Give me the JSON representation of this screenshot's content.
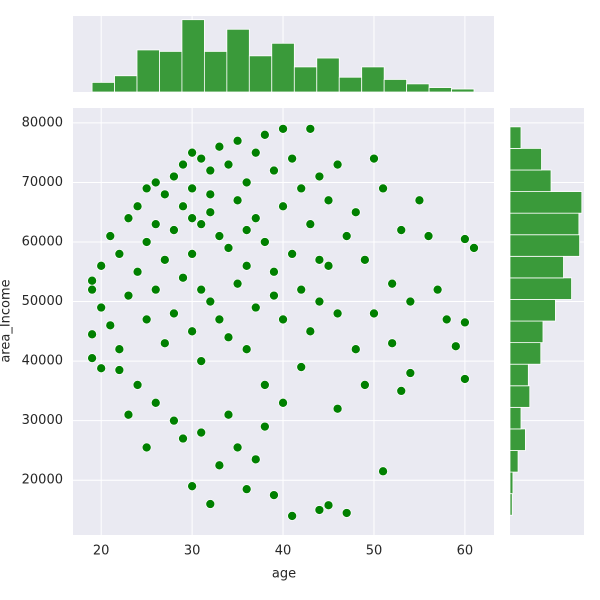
{
  "chart_data": {
    "type": "scatter",
    "x_label": "age",
    "y_label": "area_Income",
    "color": "green",
    "grid": true,
    "xlim": [
      16.9,
      63.2
    ],
    "ylim": [
      10800,
      82500
    ],
    "xticks": [
      20,
      30,
      40,
      50,
      60
    ],
    "yticks": [
      20000,
      30000,
      40000,
      50000,
      60000,
      70000,
      80000
    ],
    "x": [
      19,
      19,
      19,
      19,
      20,
      20,
      20,
      21,
      21,
      22,
      22,
      22,
      23,
      23,
      23,
      24,
      24,
      24,
      25,
      25,
      25,
      25,
      26,
      26,
      26,
      26,
      27,
      27,
      27,
      28,
      28,
      28,
      28,
      29,
      29,
      29,
      29,
      30,
      30,
      30,
      30,
      30,
      31,
      31,
      31,
      31,
      31,
      32,
      32,
      32,
      32,
      33,
      33,
      33,
      33,
      34,
      34,
      34,
      34,
      35,
      35,
      35,
      35,
      36,
      36,
      36,
      36,
      37,
      37,
      37,
      37,
      38,
      38,
      38,
      38,
      39,
      39,
      39,
      40,
      40,
      40,
      40,
      41,
      41,
      41,
      42,
      42,
      42,
      43,
      43,
      43,
      44,
      44,
      44,
      45,
      45,
      45,
      46,
      46,
      46,
      47,
      47,
      48,
      48,
      49,
      49,
      50,
      50,
      51,
      51,
      52,
      52,
      53,
      53,
      54,
      54,
      55,
      56,
      57,
      58,
      59,
      60,
      60,
      60,
      61,
      32,
      36,
      39,
      30,
      44
    ],
    "y": [
      52000,
      44500,
      40500,
      53500,
      38800,
      56000,
      49000,
      61000,
      46000,
      58000,
      42000,
      38500,
      64000,
      51000,
      31000,
      66000,
      55000,
      36000,
      69000,
      60000,
      47000,
      25500,
      70000,
      63000,
      52000,
      33000,
      68000,
      57000,
      43000,
      71000,
      62000,
      48000,
      30000,
      73000,
      66000,
      54000,
      27000,
      75000,
      69000,
      58000,
      45000,
      19000,
      74000,
      63000,
      52000,
      40000,
      28000,
      72000,
      65000,
      50000,
      16000,
      76000,
      61000,
      47000,
      22500,
      73000,
      59000,
      44000,
      31000,
      77000,
      67000,
      53000,
      25500,
      70000,
      56000,
      42000,
      18500,
      75000,
      64000,
      49000,
      23500,
      78000,
      60000,
      36000,
      29000,
      72000,
      55000,
      17500,
      79000,
      66000,
      47000,
      33000,
      74000,
      58000,
      14000,
      69000,
      52000,
      39000,
      79000,
      63000,
      45000,
      71000,
      50000,
      15000,
      67000,
      56000,
      15800,
      73000,
      48000,
      32000,
      61000,
      14500,
      65000,
      42000,
      57000,
      36000,
      74000,
      48000,
      69000,
      21500,
      53000,
      43000,
      62000,
      35000,
      50000,
      38000,
      67000,
      61000,
      52000,
      47000,
      42500,
      60500,
      46500,
      37000,
      59000,
      68000,
      62000,
      51000,
      64000,
      57000
    ],
    "hist_color": "#3a9a3a",
    "marginal_x": {
      "bins": [
        19,
        21.47,
        23.94,
        26.41,
        28.88,
        31.35,
        33.82,
        36.29,
        38.76,
        41.24,
        43.71,
        46.18,
        48.65,
        51.12,
        53.59,
        56.06,
        58.53,
        61
      ],
      "counts": [
        13,
        22,
        57,
        55,
        98,
        55,
        85,
        49,
        66,
        34,
        46,
        20,
        34,
        17,
        11,
        6,
        4
      ],
      "lim": [
        0,
        103
      ]
    },
    "marginal_y": {
      "bins": [
        14120,
        17743,
        21366,
        24989,
        28612,
        32235,
        35858,
        39481,
        43104,
        46727,
        50350,
        53973,
        57596,
        61219,
        64842,
        68465,
        72088,
        75711,
        79334
      ],
      "counts": [
        3,
        4,
        11,
        21,
        15,
        27,
        25,
        42,
        45,
        62,
        84,
        73,
        95,
        94,
        98,
        56,
        43,
        15
      ],
      "lim": [
        0,
        101
      ]
    }
  }
}
